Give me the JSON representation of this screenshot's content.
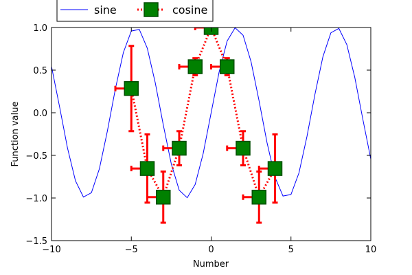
{
  "chart_data": {
    "type": "line",
    "title": "",
    "xlabel": "Number",
    "ylabel": "Function value",
    "xlim": [
      -10,
      10
    ],
    "ylim": [
      -1.5,
      1.0
    ],
    "xticks": [
      -10,
      -5,
      0,
      5,
      10
    ],
    "xtick_labels": [
      "−10",
      "−5",
      "0",
      "5",
      "10"
    ],
    "yticks": [
      -1.5,
      -1.0,
      -0.5,
      0.0,
      0.5,
      1.0
    ],
    "ytick_labels": [
      "−1.5",
      "−1.0",
      "−0.5",
      "0.0",
      "0.5",
      "1.0"
    ],
    "grid": false,
    "legend_position": "top-left-outside",
    "series": [
      {
        "name": "sine",
        "style": "solid-line",
        "color": "#0000ff",
        "x": [
          -10,
          -9.5,
          -9,
          -8.5,
          -8,
          -7.5,
          -7,
          -6.5,
          -6,
          -5.5,
          -5,
          -4.5,
          -4,
          -3.5,
          -3,
          -2.5,
          -2,
          -1.5,
          -1,
          -0.5,
          0,
          0.5,
          1,
          1.5,
          2,
          2.5,
          3,
          3.5,
          4,
          4.5,
          5,
          5.5,
          6,
          6.5,
          7,
          7.5,
          8,
          8.5,
          9,
          9.5,
          10
        ],
        "y": [
          0.544,
          0.075,
          -0.412,
          -0.798,
          -0.989,
          -0.938,
          -0.657,
          -0.215,
          0.279,
          0.706,
          0.959,
          0.977,
          0.757,
          0.351,
          -0.141,
          -0.598,
          -0.909,
          -0.997,
          -0.841,
          -0.479,
          0.0,
          0.479,
          0.841,
          0.997,
          0.909,
          0.598,
          0.141,
          -0.351,
          -0.757,
          -0.977,
          -0.959,
          -0.706,
          -0.279,
          0.215,
          0.657,
          0.938,
          0.989,
          0.798,
          0.412,
          -0.075,
          -0.544
        ]
      },
      {
        "name": "cosine",
        "style": "dotted-line-square-markers-errorbars",
        "color": "#008000",
        "line_color": "#ff0000",
        "x": [
          -5,
          -4,
          -3,
          -2,
          -1,
          0,
          1,
          2,
          3,
          4
        ],
        "y": [
          0.284,
          -0.654,
          -0.99,
          -0.416,
          0.54,
          1.0,
          0.54,
          -0.416,
          -0.99,
          -0.654
        ],
        "xerr": [
          1,
          1,
          1,
          1,
          1,
          1,
          1,
          1,
          1,
          1
        ],
        "yerr": [
          0.5,
          0.4,
          0.3,
          0.2,
          0.1,
          0.0,
          0.1,
          0.2,
          0.3,
          0.4
        ]
      }
    ]
  }
}
